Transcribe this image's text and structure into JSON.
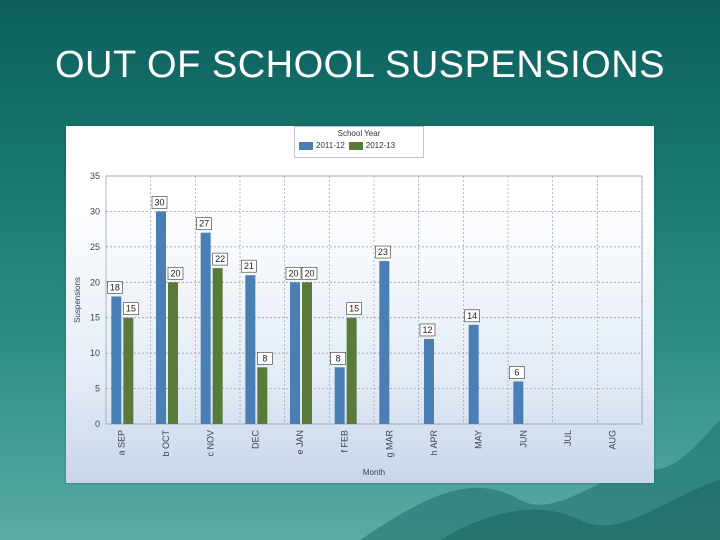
{
  "slide": {
    "title": "OUT OF SCHOOL SUSPENSIONS"
  },
  "colors": {
    "series1": "#4a7fb5",
    "series2": "#5a7a3a"
  },
  "chart_data": {
    "type": "bar",
    "title": "",
    "xlabel": "Month",
    "ylabel": "Suspensions",
    "ylim": [
      0,
      35
    ],
    "yticks": [
      "0",
      "5",
      "10",
      "15",
      "20",
      "25",
      "30",
      "35"
    ],
    "legend": {
      "title": "School Year",
      "position": "top"
    },
    "grid": true,
    "categories": [
      "SEP",
      "OCT",
      "NOV",
      "DEC",
      "JAN",
      "FEB",
      "MAR",
      "APR",
      "MAY",
      "JUN",
      "JUL",
      "AUG"
    ],
    "category_prefixes": [
      "a",
      "b",
      "c",
      "",
      "e",
      "f",
      "g",
      "h",
      "",
      "",
      "",
      ""
    ],
    "series": [
      {
        "name": "2011-12",
        "values": [
          18,
          30,
          27,
          21,
          20,
          8,
          23,
          12,
          14,
          6,
          null,
          null
        ],
        "labels": [
          "18",
          "30",
          "27",
          "21",
          "20",
          "8",
          "23",
          "12",
          "14",
          "6",
          "",
          ""
        ]
      },
      {
        "name": "2012-13",
        "values": [
          15,
          20,
          22,
          8,
          20,
          15,
          null,
          null,
          null,
          null,
          null,
          null
        ],
        "labels": [
          "15",
          "20",
          "22",
          "8",
          "20",
          "15",
          "",
          "",
          "",
          "",
          "",
          ""
        ]
      }
    ]
  }
}
